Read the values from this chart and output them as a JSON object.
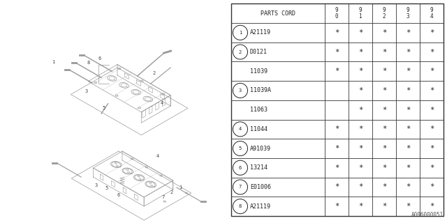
{
  "diagram_code": "A006000051",
  "background_color": "#ffffff",
  "table": {
    "rows": [
      {
        "num": "1",
        "part": "A21119",
        "cols": [
          true,
          true,
          true,
          true,
          true
        ]
      },
      {
        "num": "2",
        "part": "D0121",
        "cols": [
          true,
          true,
          true,
          true,
          true
        ]
      },
      {
        "num": "",
        "part": "11039",
        "cols": [
          true,
          true,
          true,
          true,
          true
        ]
      },
      {
        "num": "3",
        "part": "11039A",
        "cols": [
          false,
          true,
          true,
          true,
          true
        ]
      },
      {
        "num": "",
        "part": "11063",
        "cols": [
          false,
          true,
          true,
          true,
          true
        ]
      },
      {
        "num": "4",
        "part": "11044",
        "cols": [
          true,
          true,
          true,
          true,
          true
        ]
      },
      {
        "num": "5",
        "part": "A91039",
        "cols": [
          true,
          true,
          true,
          true,
          true
        ]
      },
      {
        "num": "6",
        "part": "13214",
        "cols": [
          true,
          true,
          true,
          true,
          true
        ]
      },
      {
        "num": "7",
        "part": "E01006",
        "cols": [
          true,
          true,
          true,
          true,
          true
        ]
      },
      {
        "num": "8",
        "part": "A21119",
        "cols": [
          true,
          true,
          true,
          true,
          true
        ]
      }
    ]
  },
  "font_color": "#222222",
  "line_color": "#333333",
  "diagram_line_color": "#999999"
}
